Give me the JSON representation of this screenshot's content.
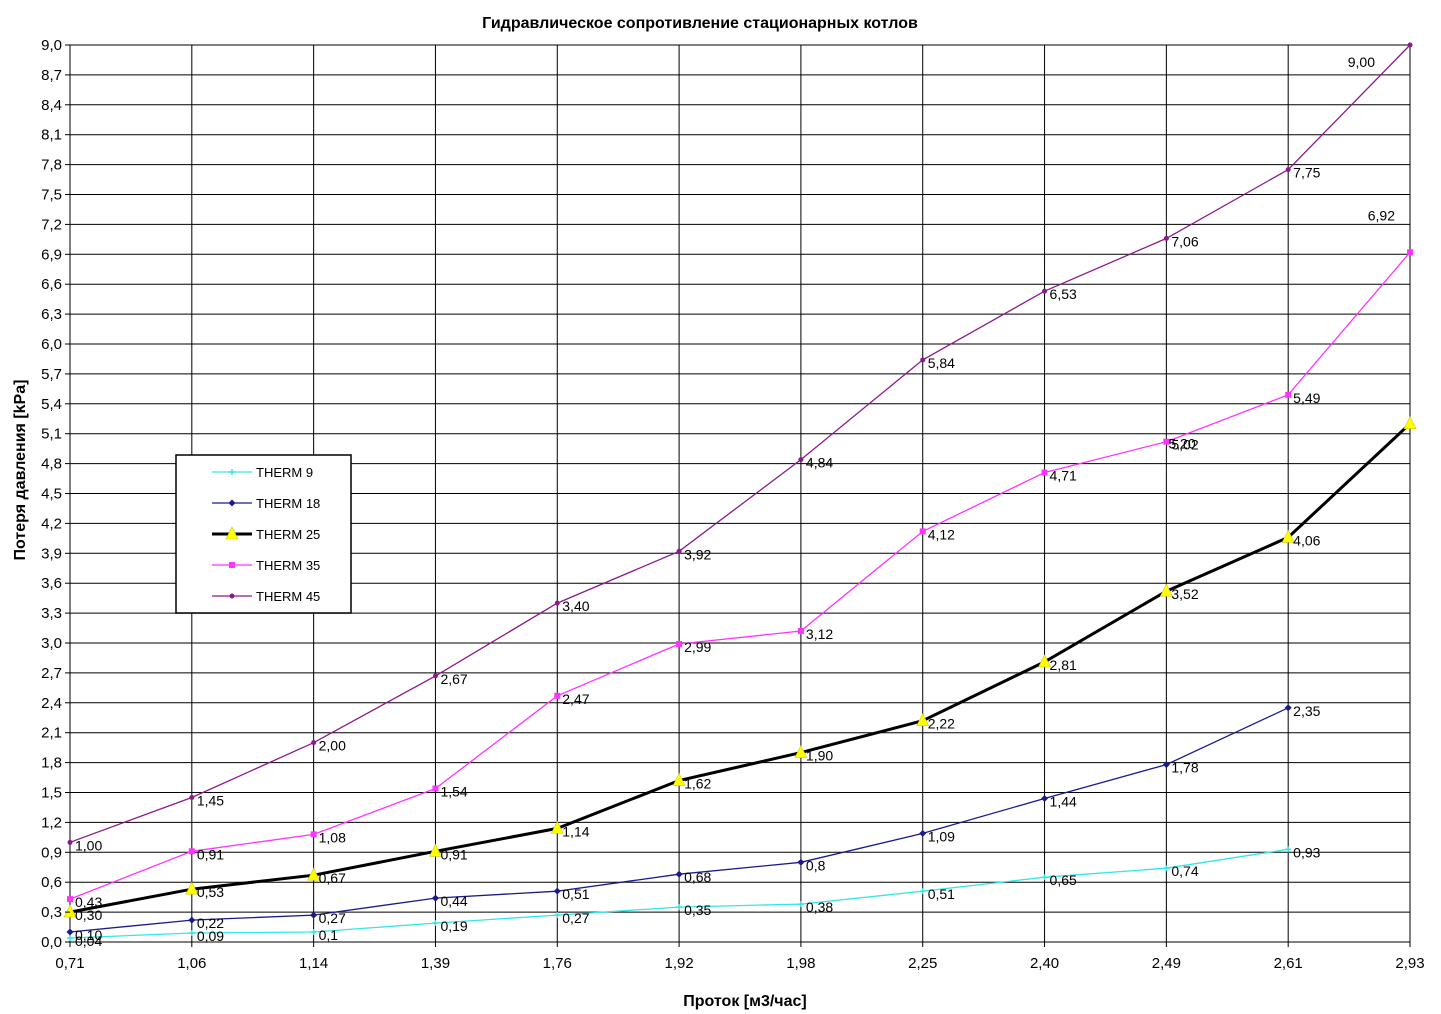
{
  "chart_data": {
    "type": "line",
    "title": "Гидравлическое сопротивление стационарных котлов",
    "xlabel": "Проток [м3/час]",
    "ylabel": "Потеря давления [kPa]",
    "categories": [
      "0,71",
      "1,06",
      "1,14",
      "1,39",
      "1,76",
      "1,92",
      "1,98",
      "2,25",
      "2,40",
      "2,49",
      "2,61",
      "2,93"
    ],
    "y_ticks": [
      "0,0",
      "0,3",
      "0,6",
      "0,9",
      "1,2",
      "1,5",
      "1,8",
      "2,1",
      "2,4",
      "2,7",
      "3,0",
      "3,3",
      "3,6",
      "3,9",
      "4,2",
      "4,5",
      "4,8",
      "5,1",
      "5,4",
      "5,7",
      "6,0",
      "6,3",
      "6,6",
      "6,9",
      "7,2",
      "7,5",
      "7,8",
      "8,1",
      "8,4",
      "8,7",
      "9,0"
    ],
    "ylim": [
      0,
      9
    ],
    "grid": true,
    "legend_position": "left-middle",
    "series": [
      {
        "name": "THERM 9",
        "color": "#33e6e6",
        "marker": "cross",
        "values": [
          0.04,
          0.09,
          0.1,
          0.19,
          0.27,
          0.35,
          0.38,
          0.51,
          0.65,
          0.74,
          0.93,
          null
        ],
        "labels": [
          "0,04",
          "0,09",
          "0,1",
          "0,19",
          "0,27",
          "0,35",
          "0,38",
          "0,51",
          "0,65",
          "0,74",
          "0,93",
          ""
        ]
      },
      {
        "name": "THERM 18",
        "color": "#1a1a8c",
        "marker": "diamond",
        "values": [
          0.1,
          0.22,
          0.27,
          0.44,
          0.51,
          0.68,
          0.8,
          1.09,
          1.44,
          1.78,
          2.35,
          null
        ],
        "labels": [
          "0,10",
          "0,22",
          "0,27",
          "0,44",
          "0,51",
          "0,68",
          "0,8",
          "1,09",
          "1,44",
          "1,78",
          "2,35",
          ""
        ]
      },
      {
        "name": "THERM 25",
        "color": "#000000",
        "marker": "triangle",
        "values": [
          0.3,
          0.53,
          0.67,
          0.91,
          1.14,
          1.62,
          1.9,
          2.22,
          2.81,
          3.52,
          4.06,
          5.2
        ],
        "labels": [
          "0,30",
          "0,53",
          "0,67",
          "0,91",
          "1,14",
          "1,62",
          "1,90",
          "2,22",
          "2,81",
          "3,52",
          "4,06",
          "5,20"
        ]
      },
      {
        "name": "THERM 35",
        "color": "#ff33ff",
        "marker": "square",
        "values": [
          0.43,
          0.91,
          1.08,
          1.54,
          2.47,
          2.99,
          3.12,
          4.12,
          4.71,
          5.02,
          5.49,
          6.92
        ],
        "labels": [
          "0,43",
          "0,91",
          "1,08",
          "1,54",
          "2,47",
          "2,99",
          "3,12",
          "4,12",
          "4,71",
          "5,02",
          "5,49",
          "6,92"
        ]
      },
      {
        "name": "THERM 45",
        "color": "#8c1a8c",
        "marker": "dot",
        "values": [
          1.0,
          1.45,
          2.0,
          2.67,
          3.4,
          3.92,
          4.84,
          5.84,
          6.53,
          7.06,
          7.75,
          9.0
        ],
        "labels": [
          "1,00",
          "1,45",
          "2,00",
          "2,67",
          "3,40",
          "3,92",
          "4,84",
          "5,84",
          "6,53",
          "7,06",
          "7,75",
          "9,00"
        ]
      }
    ]
  }
}
